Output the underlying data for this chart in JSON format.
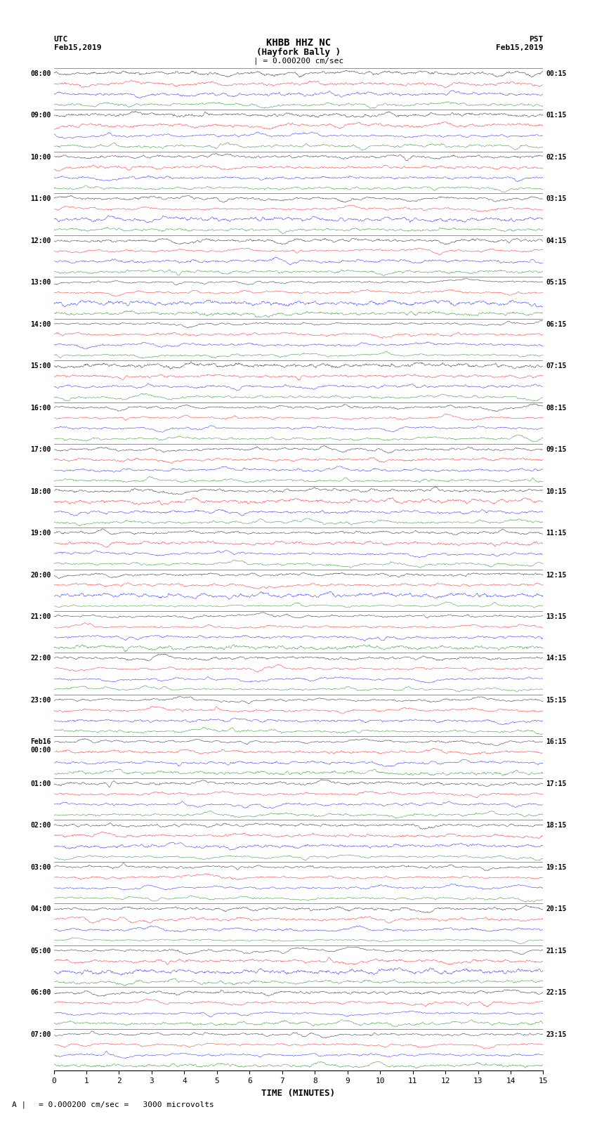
{
  "title_line1": "KHBB HHZ NC",
  "title_line2": "(Hayfork Bally )",
  "scale_text": "| = 0.000200 cm/sec",
  "left_label_top": "UTC",
  "left_label_date": "Feb15,2019",
  "right_label_top": "PST",
  "right_label_date": "Feb15,2019",
  "xlabel": "TIME (MINUTES)",
  "bottom_note": "= 0.000200 cm/sec =   3000 microvolts",
  "left_times": [
    "08:00",
    "09:00",
    "10:00",
    "11:00",
    "12:00",
    "13:00",
    "14:00",
    "15:00",
    "16:00",
    "17:00",
    "18:00",
    "19:00",
    "20:00",
    "21:00",
    "22:00",
    "23:00",
    "Feb16\n00:00",
    "01:00",
    "02:00",
    "03:00",
    "04:00",
    "05:00",
    "06:00",
    "07:00"
  ],
  "right_times": [
    "00:15",
    "01:15",
    "02:15",
    "03:15",
    "04:15",
    "05:15",
    "06:15",
    "07:15",
    "08:15",
    "09:15",
    "10:15",
    "11:15",
    "12:15",
    "13:15",
    "14:15",
    "15:15",
    "16:15",
    "17:15",
    "18:15",
    "19:15",
    "20:15",
    "21:15",
    "22:15",
    "23:15"
  ],
  "colors": [
    "black",
    "red",
    "blue",
    "green"
  ],
  "n_rows": 24,
  "traces_per_row": 4,
  "x_min": 0,
  "x_max": 15,
  "x_ticks": [
    0,
    1,
    2,
    3,
    4,
    5,
    6,
    7,
    8,
    9,
    10,
    11,
    12,
    13,
    14,
    15
  ],
  "fig_width": 8.5,
  "fig_height": 16.13,
  "background_color": "white",
  "trace_amplitude": 0.42,
  "seed": 42
}
